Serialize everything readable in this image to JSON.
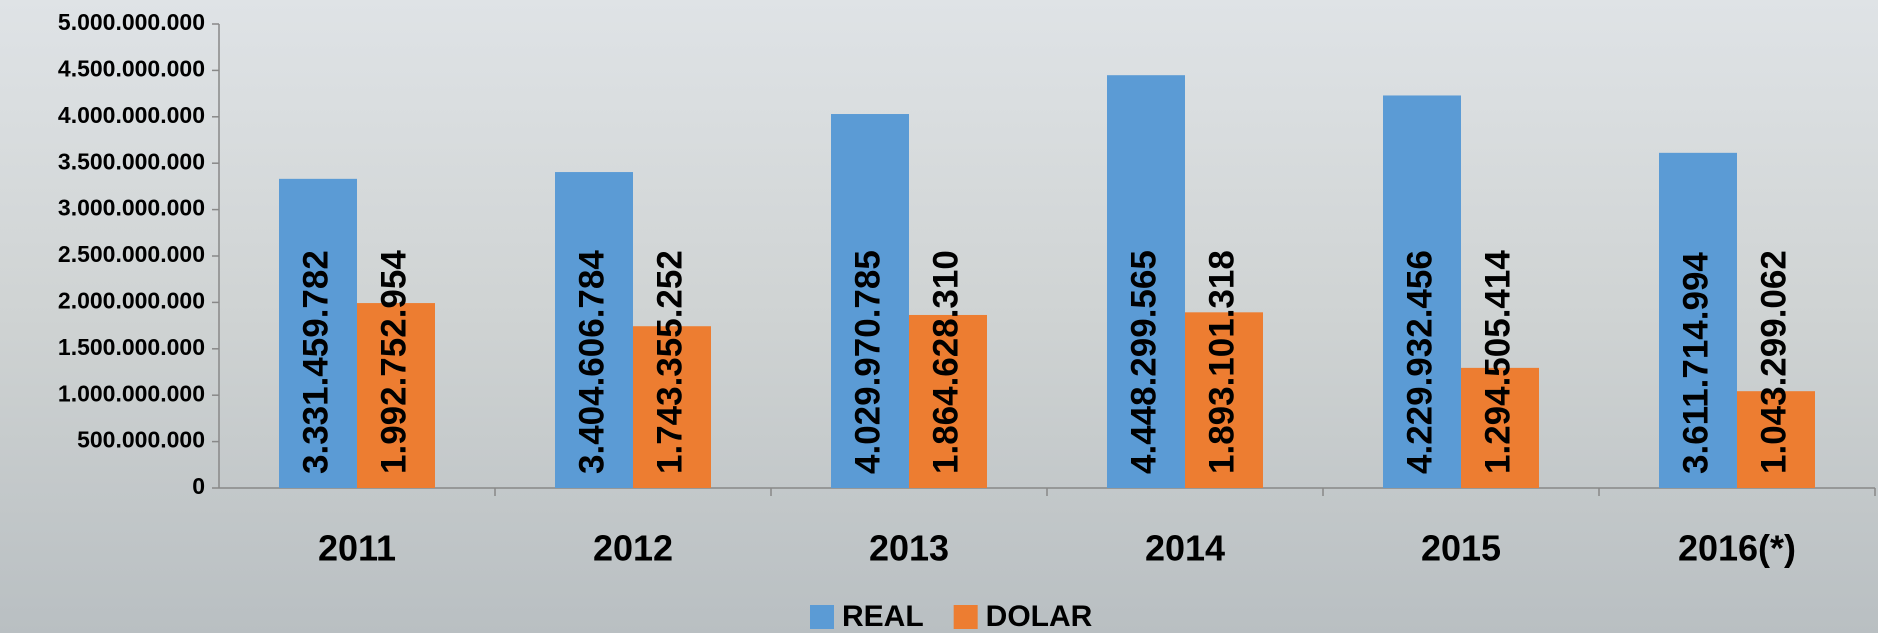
{
  "chart_data": {
    "type": "bar",
    "categories": [
      "2011",
      "2012",
      "2013",
      "2014",
      "2015",
      "2016(*)"
    ],
    "series": [
      {
        "name": "REAL",
        "color": "#5b9bd5",
        "values": [
          3331459782,
          3404606784,
          4029970785,
          4448299565,
          4229932456,
          3611714994
        ],
        "value_labels": [
          "3.331.459.782",
          "3.404.606.784",
          "4.029.970.785",
          "4.448.299.565",
          "4.229.932.456",
          "3.611.714.994"
        ]
      },
      {
        "name": "DOLAR",
        "color": "#ed7d31",
        "values": [
          1992752954,
          1743355252,
          1864628310,
          1893101318,
          1294505414,
          1043299062
        ],
        "value_labels": [
          "1.992.752.954",
          "1.743.355.252",
          "1.864.628.310",
          "1.893.101.318",
          "1.294.505.414",
          "1.043.299.062"
        ]
      }
    ],
    "ylim": [
      0,
      5000000000
    ],
    "yticks": [
      0,
      {
        "value": 500000000,
        "label": "500.000.000"
      },
      {
        "value": 1000000000,
        "label": "1.000.000.000"
      },
      {
        "value": 1500000000,
        "label": "1.500.000.000"
      },
      {
        "value": 2000000000,
        "label": "2.000.000.000"
      },
      {
        "value": 2500000000,
        "label": "2.500.000.000"
      },
      {
        "value": 3000000000,
        "label": "3.000.000.000"
      },
      {
        "value": 3500000000,
        "label": "3.500.000.000"
      },
      {
        "value": 4000000000,
        "label": "4.000.000.000"
      },
      {
        "value": 4500000000,
        "label": "4.500.000.000"
      },
      {
        "value": 5000000000,
        "label": "5.000.000.000"
      }
    ],
    "legend": "bottom"
  }
}
